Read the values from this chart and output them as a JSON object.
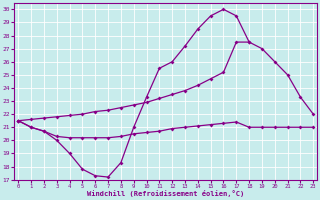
{
  "xlabel": "Windchill (Refroidissement éolien,°C)",
  "bg_color": "#c8ecec",
  "line_color": "#880088",
  "grid_color": "#ffffff",
  "xlim_min": -0.3,
  "xlim_max": 23.3,
  "ylim_min": 17.0,
  "ylim_max": 30.5,
  "yticks": [
    17,
    18,
    19,
    20,
    21,
    22,
    23,
    24,
    25,
    26,
    27,
    28,
    29,
    30
  ],
  "xticks": [
    0,
    1,
    2,
    3,
    4,
    5,
    6,
    7,
    8,
    9,
    10,
    11,
    12,
    13,
    14,
    15,
    16,
    17,
    18,
    19,
    20,
    21,
    22,
    23
  ],
  "curve1_x": [
    0,
    1,
    2,
    3,
    4,
    5,
    6,
    7,
    8,
    9,
    10,
    11,
    12,
    13,
    14,
    15,
    16,
    17,
    18
  ],
  "curve1_y": [
    21.5,
    21.0,
    20.7,
    20.0,
    19.0,
    17.8,
    17.3,
    17.2,
    18.3,
    21.0,
    23.3,
    25.5,
    26.0,
    27.2,
    28.5,
    29.5,
    30.0,
    29.5,
    27.5
  ],
  "curve2_x": [
    0,
    1,
    2,
    3,
    4,
    5,
    6,
    7,
    8,
    9,
    10,
    11,
    12,
    13,
    14,
    15,
    16,
    17,
    18,
    19,
    20,
    21,
    22,
    23
  ],
  "curve2_y": [
    21.5,
    21.6,
    21.7,
    21.8,
    21.9,
    22.0,
    22.2,
    22.3,
    22.5,
    22.7,
    22.9,
    23.2,
    23.5,
    23.8,
    24.2,
    24.7,
    25.2,
    27.5,
    27.5,
    27.0,
    26.0,
    25.0,
    23.3,
    22.0
  ],
  "curve3_x": [
    0,
    1,
    2,
    3,
    4,
    5,
    6,
    7,
    8,
    9,
    10,
    11,
    12,
    13,
    14,
    15,
    16,
    17,
    18,
    19,
    20,
    21,
    22,
    23
  ],
  "curve3_y": [
    21.5,
    21.0,
    20.7,
    20.3,
    20.2,
    20.2,
    20.2,
    20.2,
    20.3,
    20.5,
    20.6,
    20.7,
    20.9,
    21.0,
    21.1,
    21.2,
    21.3,
    21.4,
    21.0,
    21.0,
    21.0,
    21.0,
    21.0,
    21.0
  ],
  "tick_fontsize": 4.5,
  "xlabel_fontsize": 5.0,
  "marker": "D",
  "markersize": 2.0,
  "linewidth": 0.9
}
